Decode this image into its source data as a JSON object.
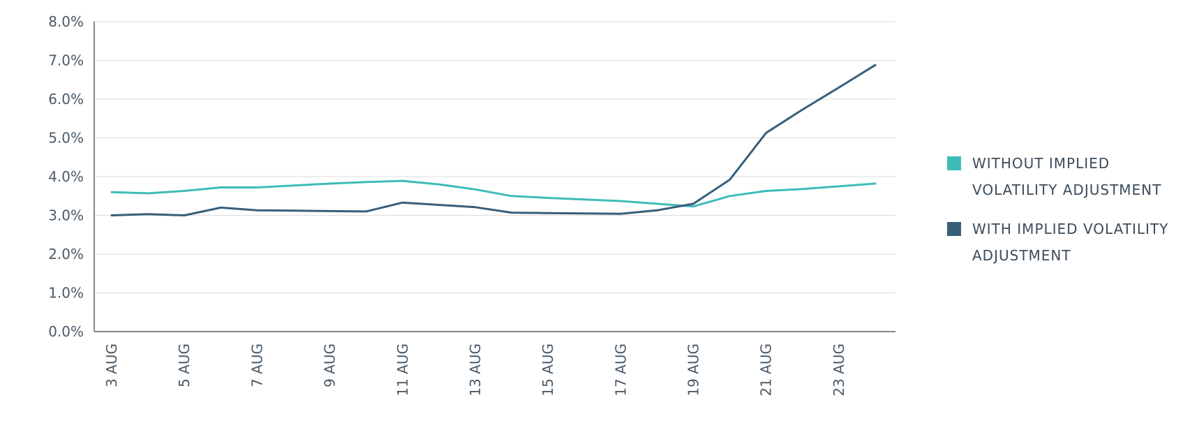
{
  "chart_data": {
    "type": "line",
    "x": [
      "3 AUG",
      "4 AUG",
      "5 AUG",
      "6 AUG",
      "7 AUG",
      "8 AUG",
      "9 AUG",
      "10 AUG",
      "11 AUG",
      "12 AUG",
      "13 AUG",
      "14 AUG",
      "15 AUG",
      "16 AUG",
      "17 AUG",
      "18 AUG",
      "19 AUG",
      "20 AUG",
      "21 AUG",
      "22 AUG",
      "23 AUG",
      "24 AUG"
    ],
    "x_tick_labels": [
      "3 AUG",
      "5 AUG",
      "7 AUG",
      "9 AUG",
      "11 AUG",
      "13 AUG",
      "15 AUG",
      "17 AUG",
      "19 AUG",
      "21 AUG",
      "23 AUG"
    ],
    "y_tick_labels": [
      "0.0%",
      "1.0%",
      "2.0%",
      "3.0%",
      "4.0%",
      "5.0%",
      "6.0%",
      "7.0%",
      "8.0%"
    ],
    "ylim": [
      0,
      8
    ],
    "y_unit": "%",
    "grid": true,
    "legend_position": "right",
    "series": [
      {
        "name": "WITHOUT IMPLIED VOLATILITY ADJUSTMENT",
        "color": "#3dbcb8",
        "values": [
          3.6,
          3.57,
          3.63,
          3.72,
          3.72,
          3.77,
          3.82,
          3.86,
          3.89,
          3.8,
          3.67,
          3.5,
          3.45,
          3.41,
          3.37,
          3.3,
          3.23,
          3.5,
          3.63,
          3.68,
          3.75,
          3.82
        ]
      },
      {
        "name": "WITH IMPLIED VOLATILITY ADJUSTMENT",
        "color": "#375f7a",
        "values": [
          3.0,
          3.03,
          3.0,
          3.2,
          3.13,
          3.12,
          3.11,
          3.1,
          3.33,
          3.27,
          3.21,
          3.07,
          3.06,
          3.05,
          3.04,
          3.13,
          3.3,
          3.92,
          5.13,
          5.73,
          6.3,
          6.88
        ]
      }
    ]
  }
}
